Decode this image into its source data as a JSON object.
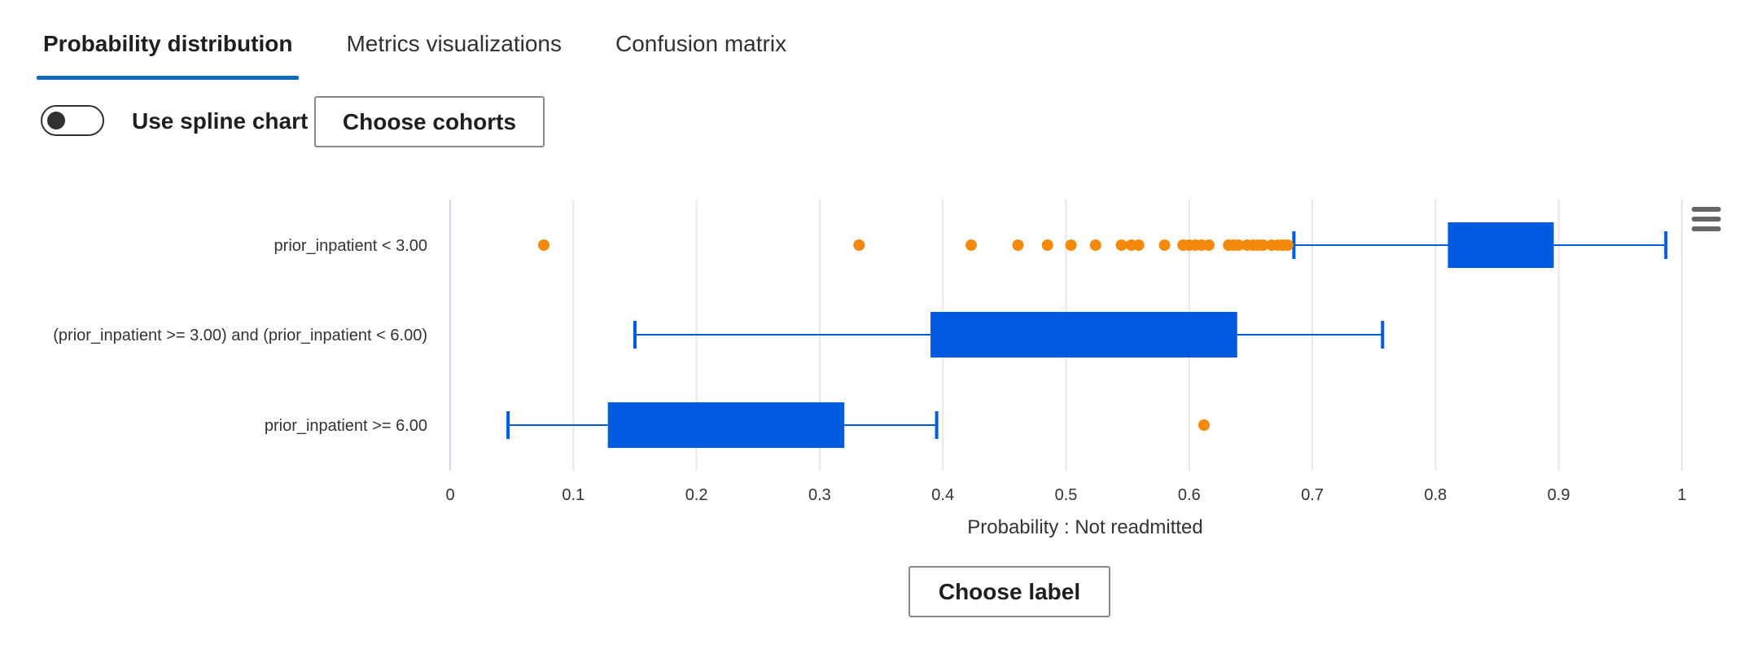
{
  "tabs": [
    {
      "label": "Probability distribution",
      "selected": true
    },
    {
      "label": "Metrics visualizations",
      "selected": false
    },
    {
      "label": "Confusion matrix",
      "selected": false
    }
  ],
  "controls": {
    "spline_toggle": {
      "label": "Use spline chart",
      "on": false
    },
    "choose_cohorts_label": "Choose cohorts",
    "choose_label_label": "Choose label"
  },
  "colors": {
    "box": "#005be0",
    "outlier": "#f48a0c",
    "grid": "#e6e6e6",
    "selected_tab": "#0f6cbd"
  },
  "icons": {
    "chart_menu": "hamburger-menu-icon"
  },
  "chart_data": {
    "type": "boxplot",
    "orientation": "horizontal",
    "xlabel": "Probability : Not readmitted",
    "xlim": [
      0,
      1
    ],
    "xticks": [
      "0",
      "0.1",
      "0.2",
      "0.3",
      "0.4",
      "0.5",
      "0.6",
      "0.7",
      "0.8",
      "0.9",
      "1"
    ],
    "grid": true,
    "categories": [
      "prior_inpatient < 3.00",
      "(prior_inpatient >= 3.00) and (prior_inpatient < 6.00)",
      "prior_inpatient >= 6.00"
    ],
    "boxes": [
      {
        "category": "prior_inpatient < 3.00",
        "low": 0.685,
        "q1": 0.81,
        "q3": 0.896,
        "high": 0.987,
        "outliers": [
          0.076,
          0.332,
          0.423,
          0.461,
          0.485,
          0.504,
          0.524,
          0.545,
          0.553,
          0.559,
          0.58,
          0.595,
          0.6,
          0.605,
          0.61,
          0.616,
          0.632,
          0.636,
          0.64,
          0.647,
          0.652,
          0.656,
          0.66,
          0.667,
          0.672,
          0.676,
          0.68
        ]
      },
      {
        "category": "(prior_inpatient >= 3.00) and (prior_inpatient < 6.00)",
        "low": 0.15,
        "q1": 0.39,
        "q3": 0.639,
        "high": 0.757,
        "outliers": []
      },
      {
        "category": "prior_inpatient >= 6.00",
        "low": 0.047,
        "q1": 0.128,
        "q3": 0.32,
        "high": 0.395,
        "outliers": [
          0.612
        ]
      }
    ]
  }
}
